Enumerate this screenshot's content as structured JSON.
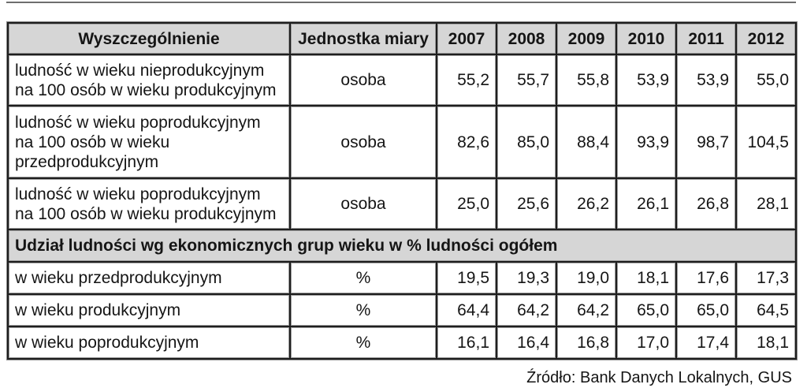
{
  "colors": {
    "header_fill": "#d6d6d6",
    "grid_lines": "#1e1e1e"
  },
  "table": {
    "header": {
      "description": "Wyszczególnienie",
      "unit": "Jednostka miary",
      "years": [
        "2007",
        "2008",
        "2009",
        "2010",
        "2011",
        "2012"
      ]
    },
    "rows": [
      {
        "label": "ludność w wieku nieprodukcyjnym\nna 100 osób w wieku produkcyjnym",
        "unit": "osoba",
        "values": [
          "55,2",
          "55,7",
          "55,8",
          "53,9",
          "53,9",
          "55,0"
        ]
      },
      {
        "label": "ludność w wieku poprodukcyjnym\nna 100 osób w wieku\nprzedprodukcyjnym",
        "unit": "osoba",
        "values": [
          "82,6",
          "85,0",
          "88,4",
          "93,9",
          "98,7",
          "104,5"
        ]
      },
      {
        "label": "ludność w wieku poprodukcyjnym\nna 100 osób w wieku produkcyjnym",
        "unit": "osoba",
        "values": [
          "25,0",
          "25,6",
          "26,2",
          "26,1",
          "26,8",
          "28,1"
        ]
      }
    ],
    "section": {
      "title": "Udział ludności wg ekonomicznych grup wieku w % ludności ogółem",
      "rows": [
        {
          "label": "w wieku przedprodukcyjnym",
          "unit": "%",
          "values": [
            "19,5",
            "19,3",
            "19,0",
            "18,1",
            "17,6",
            "17,3"
          ]
        },
        {
          "label": "w wieku produkcyjnym",
          "unit": "%",
          "values": [
            "64,4",
            "64,2",
            "64,2",
            "65,0",
            "65,0",
            "64,5"
          ]
        },
        {
          "label": "w wieku poprodukcyjnym",
          "unit": "%",
          "values": [
            "16,1",
            "16,4",
            "16,8",
            "17,0",
            "17,4",
            "18,1"
          ]
        }
      ]
    }
  },
  "source": "Źródło: Bank Danych Lokalnych, GUS"
}
